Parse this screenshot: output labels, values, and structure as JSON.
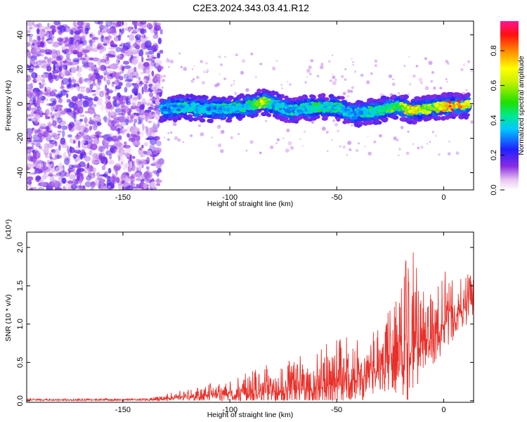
{
  "title": "C2E3.2024.343.03.41.R12",
  "chart_data": [
    {
      "type": "heatmap",
      "xlabel": "Height of straight line (km)",
      "ylabel": "Frequency (Hz)",
      "xlim": [
        -195,
        14
      ],
      "ylim": [
        -50,
        48
      ],
      "x_ticks": [
        -150,
        -100,
        -50,
        0
      ],
      "y_ticks": [
        -40,
        -20,
        0,
        20,
        40
      ],
      "colorbar": {
        "label": "Normalized spectral amplitude",
        "range": [
          0,
          0.97
        ],
        "ticks": [
          0.0,
          0.2,
          0.4,
          0.6,
          0.8
        ]
      },
      "noise_region": {
        "x_range": [
          -195,
          -132
        ],
        "y_range": [
          -50,
          48
        ],
        "amplitude": 0.15
      },
      "signal_band": [
        {
          "x": -132,
          "freq": -3,
          "amp": 0.3
        },
        {
          "x": -120,
          "freq": -2,
          "amp": 0.4
        },
        {
          "x": -110,
          "freq": -3,
          "amp": 0.35
        },
        {
          "x": -100,
          "freq": -3,
          "amp": 0.4
        },
        {
          "x": -90,
          "freq": -1,
          "amp": 0.45
        },
        {
          "x": -85,
          "freq": 1,
          "amp": 0.7
        },
        {
          "x": -80,
          "freq": 0,
          "amp": 0.4
        },
        {
          "x": -72,
          "freq": -4,
          "amp": 0.35
        },
        {
          "x": -60,
          "freq": -2,
          "amp": 0.45
        },
        {
          "x": -50,
          "freq": -2,
          "amp": 0.4
        },
        {
          "x": -42,
          "freq": -6,
          "amp": 0.35
        },
        {
          "x": -30,
          "freq": -4,
          "amp": 0.45
        },
        {
          "x": -22,
          "freq": -1,
          "amp": 0.55
        },
        {
          "x": -15,
          "freq": -4,
          "amp": 0.8
        },
        {
          "x": -8,
          "freq": -3,
          "amp": 0.6
        },
        {
          "x": -3,
          "freq": -2,
          "amp": 0.75
        },
        {
          "x": 3,
          "freq": -1,
          "amp": 0.9
        },
        {
          "x": 8,
          "freq": -1,
          "amp": 0.85
        },
        {
          "x": 12,
          "freq": -1,
          "amp": 0.7
        }
      ]
    },
    {
      "type": "line",
      "xlabel": "Height of straight line (km)",
      "ylabel": "SNR (10 * v/v)",
      "y_multiplier_label": "(x10⁴)",
      "xlim": [
        -195,
        14
      ],
      "ylim": [
        -0.02,
        2.2
      ],
      "x_ticks": [
        -150,
        -100,
        -50,
        0
      ],
      "y_ticks": [
        0.0,
        0.5,
        1.0,
        1.5,
        2.0
      ],
      "color": "#e8302a",
      "envelope": [
        {
          "x": -195,
          "base": 0.01,
          "spread": 0.02
        },
        {
          "x": -140,
          "base": 0.01,
          "spread": 0.02
        },
        {
          "x": -132,
          "base": 0.02,
          "spread": 0.06
        },
        {
          "x": -120,
          "base": 0.05,
          "spread": 0.12
        },
        {
          "x": -100,
          "base": 0.08,
          "spread": 0.2
        },
        {
          "x": -85,
          "base": 0.1,
          "spread": 0.35
        },
        {
          "x": -70,
          "base": 0.15,
          "spread": 0.45
        },
        {
          "x": -55,
          "base": 0.2,
          "spread": 0.55
        },
        {
          "x": -40,
          "base": 0.3,
          "spread": 0.6
        },
        {
          "x": -30,
          "base": 0.4,
          "spread": 0.55
        },
        {
          "x": -20,
          "base": 0.55,
          "spread": 0.9
        },
        {
          "x": -16,
          "base": 0.7,
          "spread": 1.45
        },
        {
          "x": -10,
          "base": 0.75,
          "spread": 0.7
        },
        {
          "x": -3,
          "base": 0.85,
          "spread": 0.6
        },
        {
          "x": 0,
          "base": 1.0,
          "spread": 0.75
        },
        {
          "x": 5,
          "base": 1.1,
          "spread": 0.5
        },
        {
          "x": 10,
          "base": 1.2,
          "spread": 0.45
        },
        {
          "x": 14,
          "base": 1.3,
          "spread": 0.4
        }
      ]
    }
  ]
}
